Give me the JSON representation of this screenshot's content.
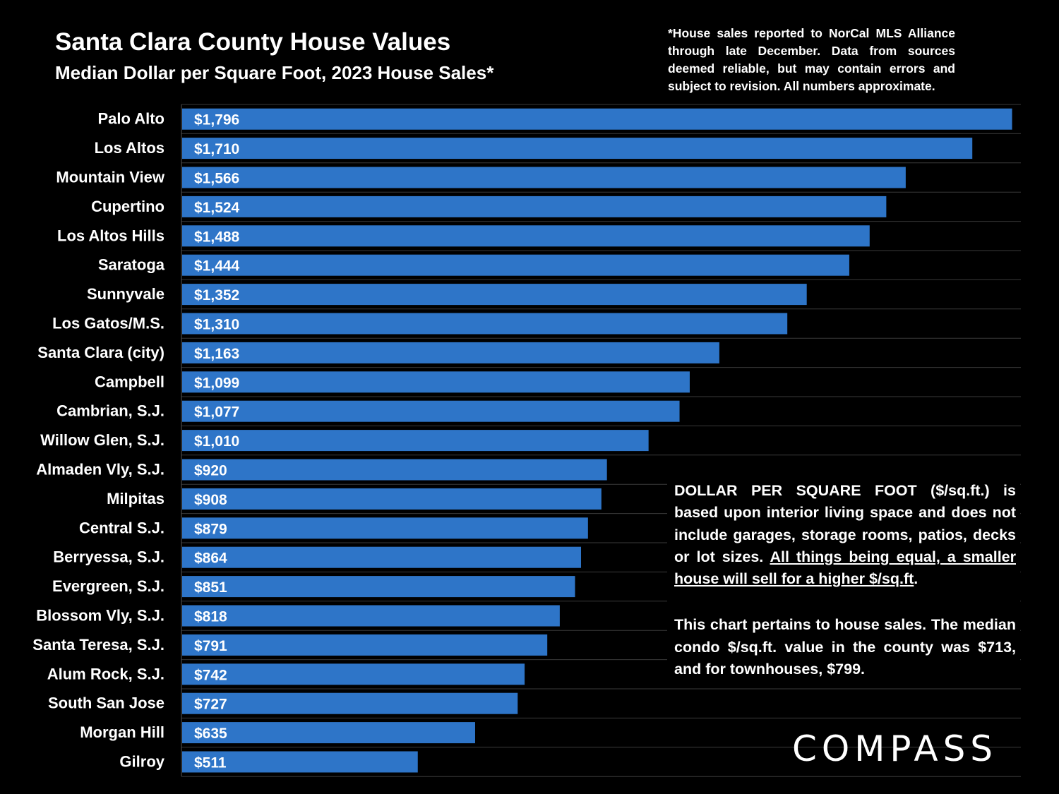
{
  "header": {
    "title": "Santa Clara County House Values",
    "subtitle": "Median Dollar per Square Foot, 2023 House Sales*"
  },
  "footnote": "*House sales reported to NorCal MLS Alliance through late December. Data from sources deemed reliable, but may contain errors and subject to revision. All numbers approximate.",
  "note": {
    "p1_intro": "DOLLAR PER SQUARE FOOT ($/sq.ft.) is based upon interior living space and does not include garages, storage rooms, patios, decks or lot sizes. ",
    "p1_underlined": "All things being equal, a smaller house will sell for a higher $/sq.ft",
    "p1_end": ".",
    "p2": "This chart pertains to house sales. The median condo $/sq.ft. value in the county was $713, and for townhouses, $799."
  },
  "brand": "COMPASS",
  "colors": {
    "bar": "#2E75C8",
    "background": "#000000",
    "gridline": "#3a3a3a"
  },
  "chart_data": {
    "type": "bar",
    "orientation": "horizontal",
    "title": "Santa Clara County House Values",
    "subtitle": "Median Dollar per Square Foot, 2023 House Sales*",
    "categories": [
      "Palo Alto",
      "Los Altos",
      "Mountain View",
      "Cupertino",
      "Los Altos Hills",
      "Saratoga",
      "Sunnyvale",
      "Los Gatos/M.S.",
      "Santa Clara (city)",
      "Campbell",
      "Cambrian, S.J.",
      "Willow Glen, S.J.",
      "Almaden Vly, S.J.",
      "Milpitas",
      "Central S.J.",
      "Berryessa, S.J.",
      "Evergreen, S.J.",
      "Blossom Vly, S.J.",
      "Santa Teresa, S.J.",
      "Alum Rock, S.J.",
      "South San Jose",
      "Morgan Hill",
      "Gilroy"
    ],
    "values": [
      1796,
      1710,
      1566,
      1524,
      1488,
      1444,
      1352,
      1310,
      1163,
      1099,
      1077,
      1010,
      920,
      908,
      879,
      864,
      851,
      818,
      791,
      742,
      727,
      635,
      511
    ],
    "value_labels": [
      "$1,796",
      "$1,710",
      "$1,566",
      "$1,524",
      "$1,488",
      "$1,444",
      "$1,352",
      "$1,310",
      "$1,163",
      "$1,099",
      "$1,077",
      "$1,010",
      "$920",
      "$908",
      "$879",
      "$864",
      "$851",
      "$818",
      "$791",
      "$742",
      "$727",
      "$635",
      "$511"
    ],
    "xlim": [
      0,
      1815
    ],
    "xlabel": "",
    "ylabel": "",
    "grid": true
  }
}
